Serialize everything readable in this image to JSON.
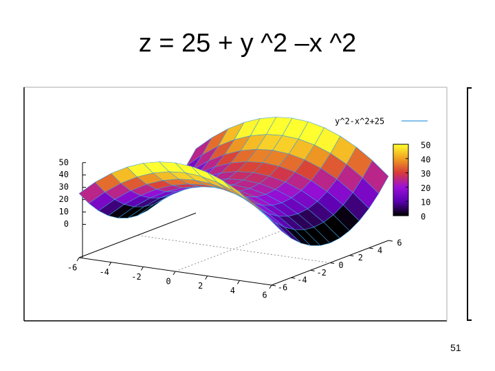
{
  "slide": {
    "title": "z = 25 + y ^2 –x ^2",
    "number": "51"
  },
  "chart_data": {
    "type": "surface",
    "legend": "y^2-x^2+25",
    "legend_position": "top right",
    "color": "#3b9bde",
    "x": [
      -6,
      -5,
      -4,
      -3,
      -2,
      -1,
      0,
      1,
      2,
      3,
      4,
      5,
      6
    ],
    "y": [
      -6,
      -5,
      -4,
      -3,
      -2,
      -1,
      0,
      1,
      2,
      3,
      4,
      5,
      6
    ],
    "z": [
      [
        25,
        36,
        45,
        52,
        57,
        60,
        61,
        60,
        57,
        52,
        45,
        36,
        25
      ],
      [
        14,
        25,
        34,
        41,
        46,
        49,
        50,
        49,
        46,
        41,
        34,
        25,
        14
      ],
      [
        5,
        16,
        25,
        32,
        37,
        40,
        41,
        40,
        37,
        32,
        25,
        16,
        5
      ],
      [
        -2,
        9,
        18,
        25,
        30,
        33,
        34,
        33,
        30,
        25,
        18,
        9,
        -2
      ],
      [
        -7,
        4,
        13,
        20,
        25,
        28,
        29,
        28,
        25,
        20,
        13,
        4,
        -7
      ],
      [
        -10,
        1,
        10,
        17,
        22,
        25,
        26,
        25,
        22,
        17,
        10,
        1,
        -10
      ],
      [
        -11,
        0,
        9,
        16,
        21,
        24,
        25,
        24,
        21,
        16,
        9,
        0,
        -11
      ],
      [
        -10,
        1,
        10,
        17,
        22,
        25,
        26,
        25,
        22,
        17,
        10,
        1,
        -10
      ],
      [
        -7,
        4,
        13,
        20,
        25,
        28,
        29,
        28,
        25,
        20,
        13,
        4,
        -7
      ],
      [
        -2,
        9,
        18,
        25,
        30,
        33,
        34,
        33,
        30,
        25,
        18,
        9,
        -2
      ],
      [
        5,
        16,
        25,
        32,
        37,
        40,
        41,
        40,
        37,
        32,
        25,
        16,
        5
      ],
      [
        14,
        25,
        34,
        41,
        46,
        49,
        50,
        49,
        46,
        41,
        34,
        25,
        14
      ],
      [
        25,
        36,
        45,
        52,
        57,
        60,
        61,
        60,
        57,
        52,
        45,
        36,
        25
      ]
    ],
    "xlim": [
      -6,
      6
    ],
    "ylim": [
      -6,
      6
    ],
    "zlim": [
      -27,
      61
    ],
    "xticks": [
      -6,
      -4,
      -2,
      0,
      2,
      4,
      6
    ],
    "yticks": [
      -6,
      -4,
      -2,
      0,
      2,
      4,
      6
    ],
    "zticks": [
      0,
      10,
      20,
      30,
      40,
      50
    ],
    "cblim": [
      0,
      50
    ],
    "cbticks": [
      0,
      10,
      20,
      30,
      40,
      50
    ],
    "palette": [
      "#000000",
      "#5a00b0",
      "#9a10d8",
      "#d83a3a",
      "#f0a020",
      "#ffff30"
    ],
    "grid": true
  }
}
